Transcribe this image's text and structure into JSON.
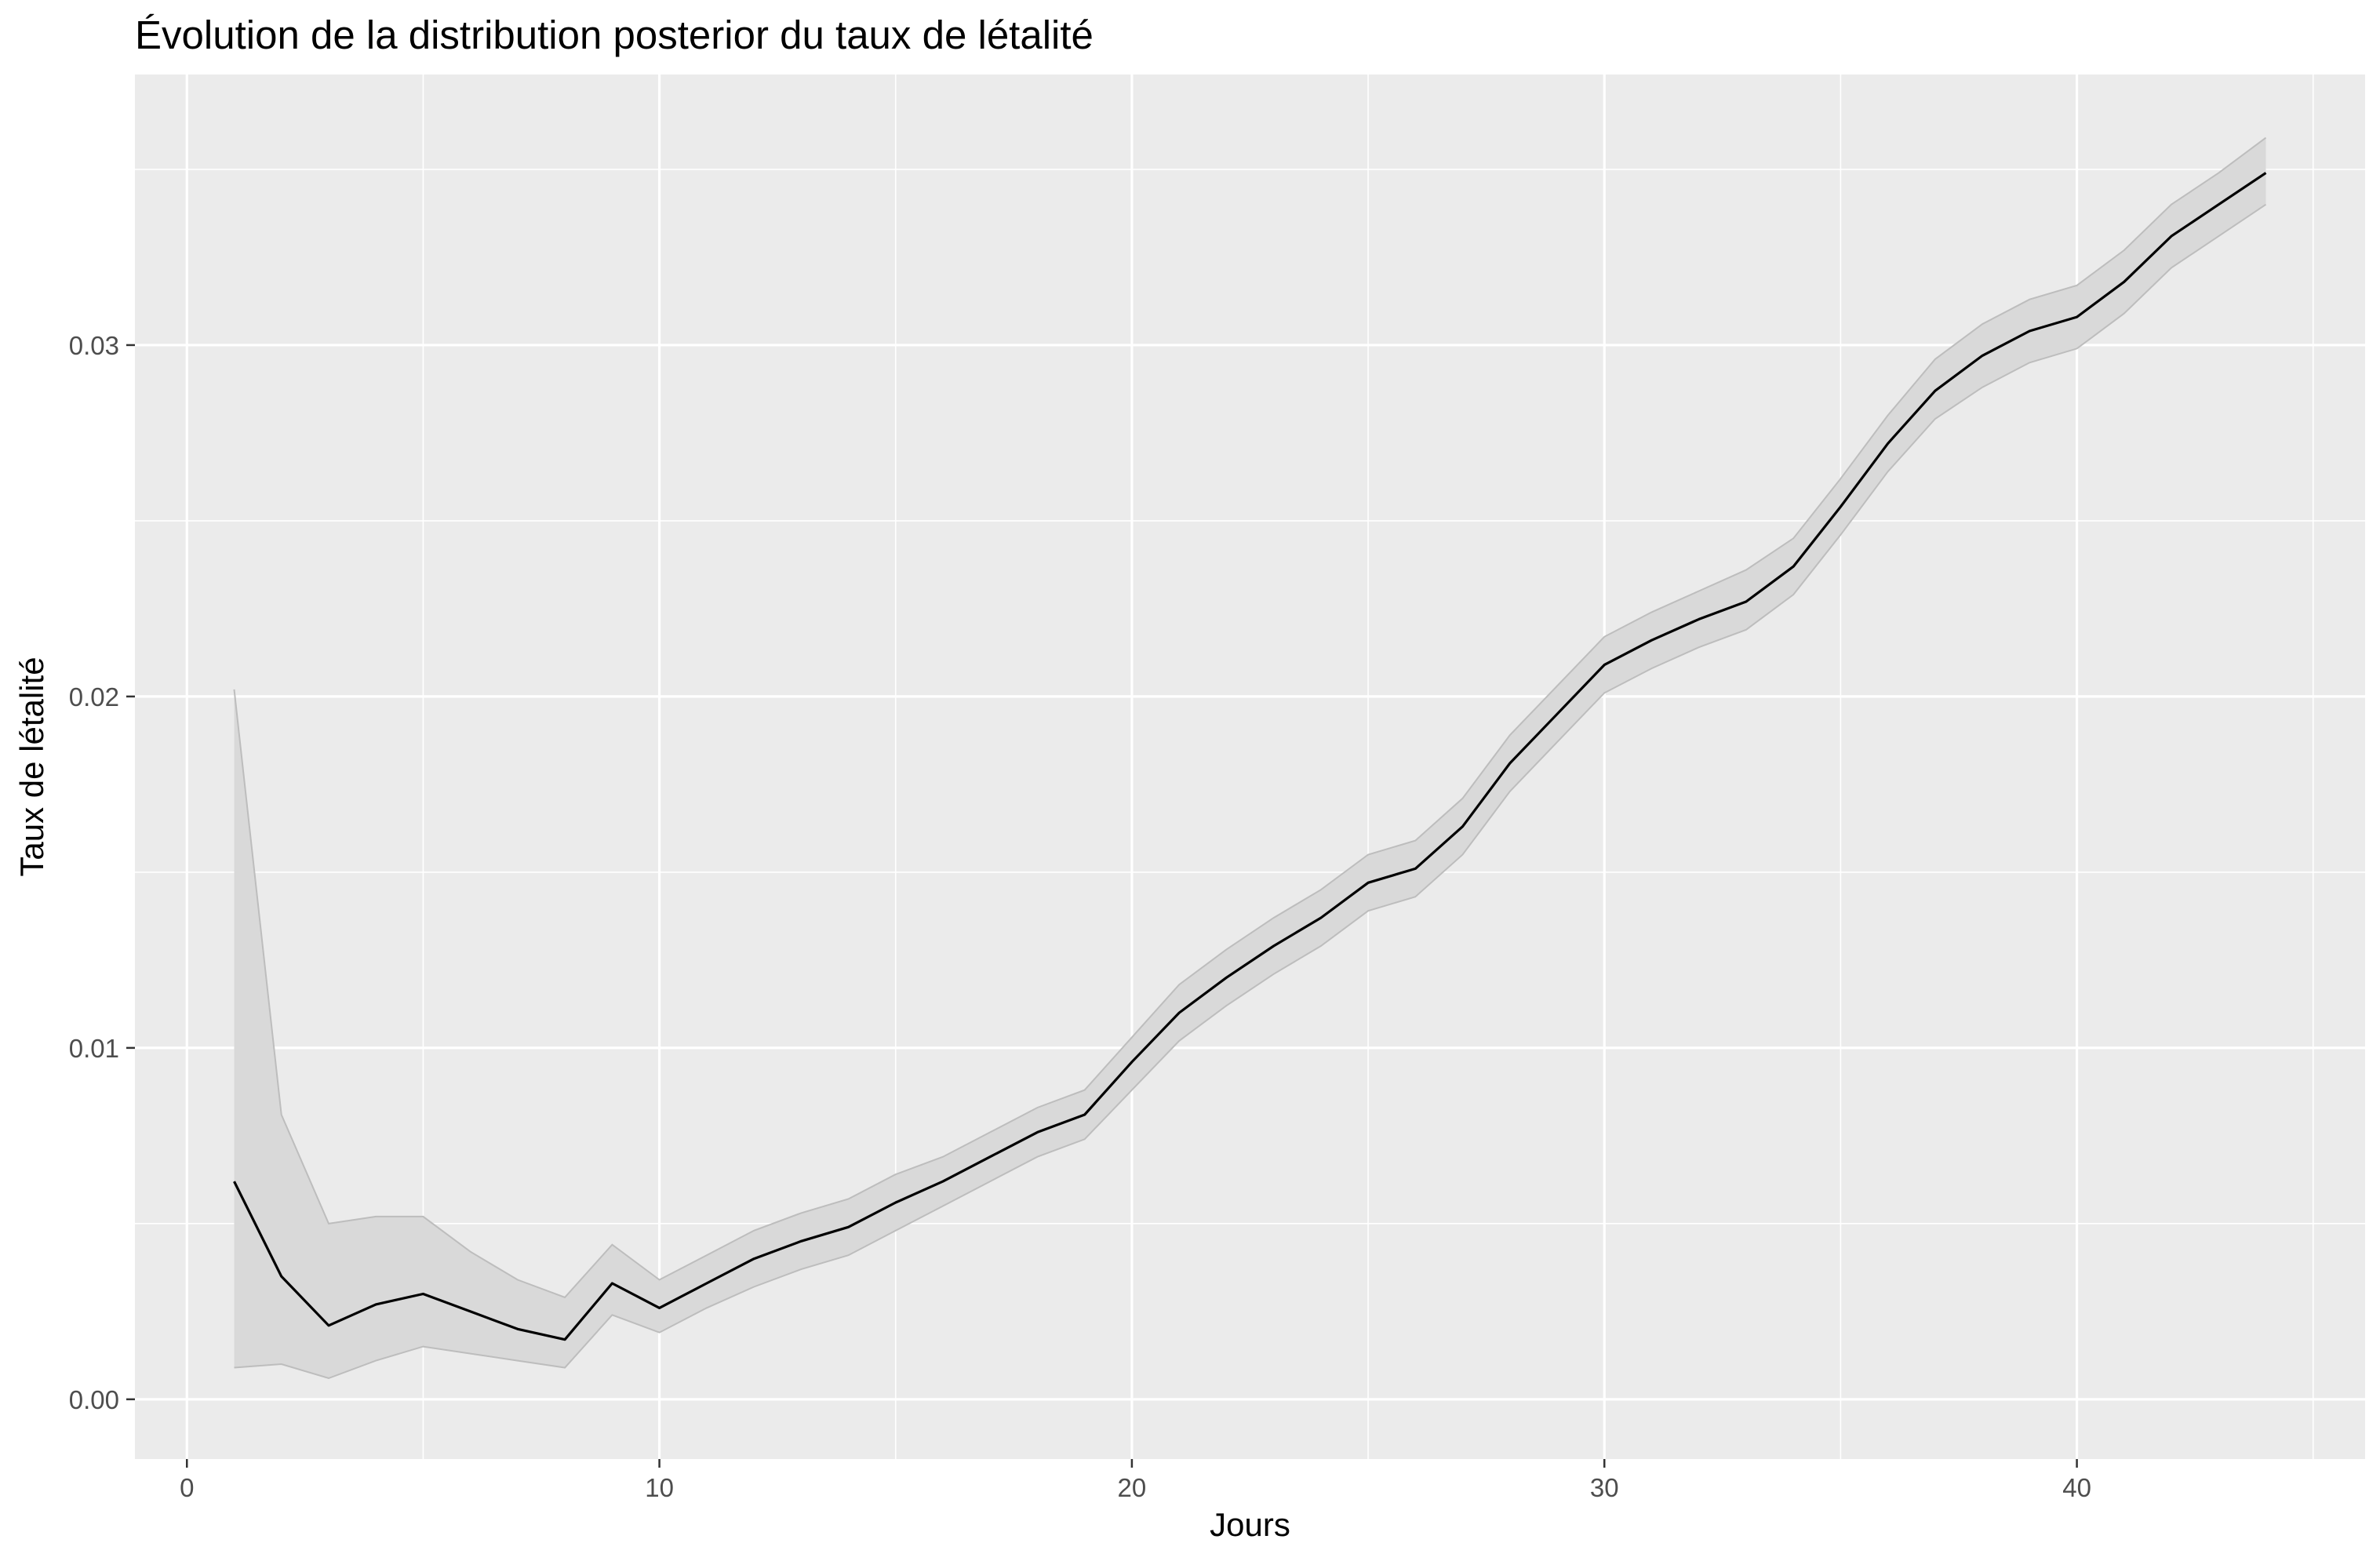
{
  "chart_data": {
    "type": "line",
    "title": "Évolution de la distribution posterior du taux de létalité",
    "xlabel": "Jours",
    "ylabel": "Taux de létalité",
    "xlim": [
      -1.1,
      46.1
    ],
    "ylim": [
      -0.0017,
      0.0377
    ],
    "x_ticks": [
      0,
      10,
      20,
      30,
      40
    ],
    "x_tick_labels": [
      "0",
      "10",
      "20",
      "30",
      "40"
    ],
    "x_minor_ticks": [
      5,
      15,
      25,
      35,
      45
    ],
    "y_ticks": [
      0,
      0.01,
      0.02,
      0.03
    ],
    "y_tick_labels": [
      "0.00",
      "0.01",
      "0.02",
      "0.03"
    ],
    "y_minor_ticks": [
      0.005,
      0.015,
      0.025,
      0.035
    ],
    "grid": true,
    "legend": "none",
    "colors": {
      "panel": "#ebebeb",
      "grid": "#ffffff",
      "ribbon": "#d9d9d9",
      "ribbon_edge": "#bdbdbd",
      "line": "#000000",
      "tick": "#333333"
    },
    "series": [
      {
        "x": [
          1,
          2,
          3,
          4,
          5,
          6,
          7,
          8,
          9,
          10,
          11,
          12,
          13,
          14,
          15,
          16,
          17,
          18,
          19,
          20,
          21,
          22,
          23,
          24,
          25,
          26,
          27,
          28,
          29,
          30,
          31,
          32,
          33,
          34,
          35,
          36,
          37,
          38,
          39,
          40,
          41,
          42,
          43,
          44
        ],
        "mean": [
          0.0062,
          0.0035,
          0.0021,
          0.0027,
          0.003,
          0.0025,
          0.002,
          0.0017,
          0.0033,
          0.0026,
          0.0033,
          0.004,
          0.0045,
          0.0049,
          0.0056,
          0.0062,
          0.0069,
          0.0076,
          0.0081,
          0.0096,
          0.011,
          0.012,
          0.0129,
          0.0137,
          0.0147,
          0.0151,
          0.0163,
          0.0181,
          0.0195,
          0.0209,
          0.0216,
          0.0222,
          0.0227,
          0.0237,
          0.0254,
          0.0272,
          0.0287,
          0.0297,
          0.0304,
          0.0308,
          0.0318,
          0.0331,
          0.034,
          0.0349
        ],
        "lower": [
          0.0009,
          0.001,
          0.0006,
          0.0011,
          0.0015,
          0.0013,
          0.0011,
          0.0009,
          0.0024,
          0.0019,
          0.0026,
          0.0032,
          0.0037,
          0.0041,
          0.0048,
          0.0055,
          0.0062,
          0.0069,
          0.0074,
          0.0088,
          0.0102,
          0.0112,
          0.0121,
          0.0129,
          0.0139,
          0.0143,
          0.0155,
          0.0173,
          0.0187,
          0.0201,
          0.0208,
          0.0214,
          0.0219,
          0.0229,
          0.0246,
          0.0264,
          0.0279,
          0.0288,
          0.0295,
          0.0299,
          0.0309,
          0.0322,
          0.0331,
          0.034
        ],
        "upper": [
          0.0202,
          0.0081,
          0.005,
          0.0052,
          0.0052,
          0.0042,
          0.0034,
          0.0029,
          0.0044,
          0.0034,
          0.0041,
          0.0048,
          0.0053,
          0.0057,
          0.0064,
          0.0069,
          0.0076,
          0.0083,
          0.0088,
          0.0103,
          0.0118,
          0.0128,
          0.0137,
          0.0145,
          0.0155,
          0.0159,
          0.0171,
          0.0189,
          0.0203,
          0.0217,
          0.0224,
          0.023,
          0.0236,
          0.0245,
          0.0262,
          0.028,
          0.0296,
          0.0306,
          0.0313,
          0.0317,
          0.0327,
          0.034,
          0.0349,
          0.0359
        ]
      }
    ]
  }
}
